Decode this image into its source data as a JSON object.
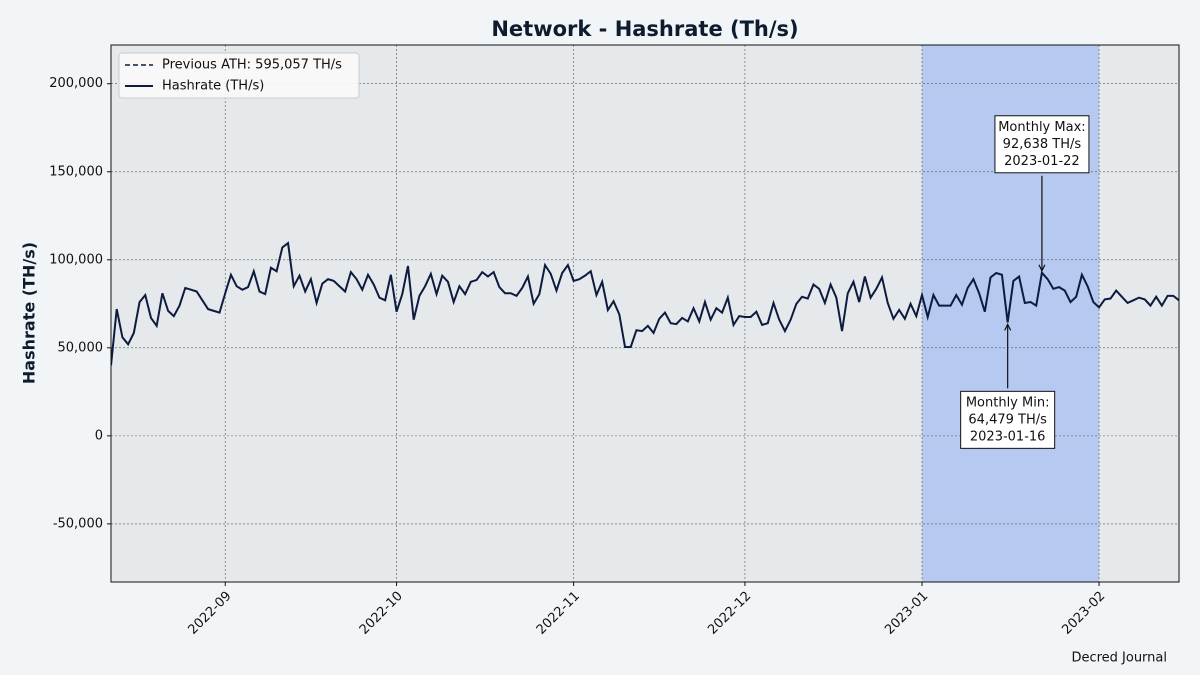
{
  "chart_data": {
    "type": "line",
    "title": "Network - Hashrate (Th/s)",
    "y_label": "Hashrate (TH/s)",
    "footer": "Decred Journal",
    "x": [
      "2022-08-12",
      "2022-08-13",
      "2022-08-14",
      "2022-08-15",
      "2022-08-16",
      "2022-08-17",
      "2022-08-18",
      "2022-08-19",
      "2022-08-20",
      "2022-08-21",
      "2022-08-22",
      "2022-08-23",
      "2022-08-24",
      "2022-08-25",
      "2022-08-26",
      "2022-08-27",
      "2022-08-28",
      "2022-08-29",
      "2022-08-30",
      "2022-08-31",
      "2022-09-01",
      "2022-09-02",
      "2022-09-03",
      "2022-09-04",
      "2022-09-05",
      "2022-09-06",
      "2022-09-07",
      "2022-09-08",
      "2022-09-09",
      "2022-09-10",
      "2022-09-11",
      "2022-09-12",
      "2022-09-13",
      "2022-09-14",
      "2022-09-15",
      "2022-09-16",
      "2022-09-17",
      "2022-09-18",
      "2022-09-19",
      "2022-09-20",
      "2022-09-21",
      "2022-09-22",
      "2022-09-23",
      "2022-09-24",
      "2022-09-25",
      "2022-09-26",
      "2022-09-27",
      "2022-09-28",
      "2022-09-29",
      "2022-09-30",
      "2022-10-01",
      "2022-10-02",
      "2022-10-03",
      "2022-10-04",
      "2022-10-05",
      "2022-10-06",
      "2022-10-07",
      "2022-10-08",
      "2022-10-09",
      "2022-10-10",
      "2022-10-11",
      "2022-10-12",
      "2022-10-13",
      "2022-10-14",
      "2022-10-15",
      "2022-10-16",
      "2022-10-17",
      "2022-10-18",
      "2022-10-19",
      "2022-10-20",
      "2022-10-21",
      "2022-10-22",
      "2022-10-23",
      "2022-10-24",
      "2022-10-25",
      "2022-10-26",
      "2022-10-27",
      "2022-10-28",
      "2022-10-29",
      "2022-10-30",
      "2022-10-31",
      "2022-11-01",
      "2022-11-02",
      "2022-11-03",
      "2022-11-04",
      "2022-11-05",
      "2022-11-06",
      "2022-11-07",
      "2022-11-08",
      "2022-11-09",
      "2022-11-10",
      "2022-11-11",
      "2022-11-12",
      "2022-11-13",
      "2022-11-14",
      "2022-11-15",
      "2022-11-16",
      "2022-11-17",
      "2022-11-18",
      "2022-11-19",
      "2022-11-20",
      "2022-11-21",
      "2022-11-22",
      "2022-11-23",
      "2022-11-24",
      "2022-11-25",
      "2022-11-26",
      "2022-11-27",
      "2022-11-28",
      "2022-11-29",
      "2022-11-30",
      "2022-12-01",
      "2022-12-02",
      "2022-12-03",
      "2022-12-04",
      "2022-12-05",
      "2022-12-06",
      "2022-12-07",
      "2022-12-08",
      "2022-12-09",
      "2022-12-10",
      "2022-12-11",
      "2022-12-12",
      "2022-12-13",
      "2022-12-14",
      "2022-12-15",
      "2022-12-16",
      "2022-12-17",
      "2022-12-18",
      "2022-12-19",
      "2022-12-20",
      "2022-12-21",
      "2022-12-22",
      "2022-12-23",
      "2022-12-24",
      "2022-12-25",
      "2022-12-26",
      "2022-12-27",
      "2022-12-28",
      "2022-12-29",
      "2022-12-30",
      "2022-12-31",
      "2023-01-01",
      "2023-01-02",
      "2023-01-03",
      "2023-01-04",
      "2023-01-05",
      "2023-01-06",
      "2023-01-07",
      "2023-01-08",
      "2023-01-09",
      "2023-01-10",
      "2023-01-11",
      "2023-01-12",
      "2023-01-13",
      "2023-01-14",
      "2023-01-15",
      "2023-01-16",
      "2023-01-17",
      "2023-01-18",
      "2023-01-19",
      "2023-01-20",
      "2023-01-21",
      "2023-01-22",
      "2023-01-23",
      "2023-01-24",
      "2023-01-25",
      "2023-01-26",
      "2023-01-27",
      "2023-01-28",
      "2023-01-29",
      "2023-01-30",
      "2023-01-31",
      "2023-02-01",
      "2023-02-02",
      "2023-02-03",
      "2023-02-04",
      "2023-02-05",
      "2023-02-06",
      "2023-02-07",
      "2023-02-08",
      "2023-02-09",
      "2023-02-10",
      "2023-02-11",
      "2023-02-12",
      "2023-02-13",
      "2023-02-14",
      "2023-02-15"
    ],
    "series": [
      {
        "name": "Hashrate (TH/s)",
        "color": "#0d1b3e",
        "values": [
          40000,
          72000,
          56000,
          52000,
          58500,
          76000,
          80000,
          67000,
          62500,
          81000,
          71000,
          68000,
          74000,
          84000,
          83000,
          82000,
          77000,
          72000,
          71000,
          70000,
          81000,
          91500,
          85000,
          83000,
          84500,
          93500,
          82000,
          80500,
          95500,
          93500,
          107000,
          109500,
          85000,
          91000,
          82000,
          89000,
          75500,
          86500,
          89000,
          88000,
          85000,
          82000,
          93000,
          89000,
          83000,
          91500,
          86000,
          78500,
          77000,
          91500,
          70500,
          80500,
          96500,
          66000,
          79500,
          85000,
          92000,
          80500,
          91000,
          87500,
          76000,
          85000,
          80500,
          87500,
          88500,
          93000,
          90500,
          93000,
          84500,
          81000,
          81000,
          79500,
          84000,
          90500,
          75000,
          80500,
          97000,
          92000,
          82500,
          92500,
          97000,
          88000,
          89000,
          91000,
          93500,
          80000,
          87500,
          71500,
          76500,
          69000,
          50500,
          50500,
          60000,
          59500,
          62500,
          58500,
          66500,
          70000,
          64000,
          63500,
          67000,
          65000,
          72500,
          65000,
          76000,
          66000,
          72500,
          70000,
          78500,
          63000,
          68000,
          67500,
          67500,
          70500,
          63000,
          64000,
          75500,
          66000,
          59500,
          66000,
          75000,
          79000,
          78000,
          86000,
          83500,
          75500,
          86000,
          78500,
          59500,
          81000,
          87500,
          76000,
          90500,
          78500,
          83500,
          90000,
          75500,
          66500,
          71500,
          66500,
          75000,
          68000,
          80000,
          67500,
          80000,
          74000,
          74000,
          74000,
          80000,
          74500,
          84000,
          89000,
          81000,
          70500,
          90000,
          92500,
          91500,
          64479,
          88000,
          90500,
          75500,
          76000,
          74000,
          92638,
          89000,
          83500,
          84500,
          82500,
          76000,
          79000,
          91500,
          85000,
          76000,
          73000,
          77500,
          78000,
          82500,
          79000,
          75500,
          77000,
          78500,
          77500,
          74000,
          79000,
          74000,
          79500,
          79500,
          77000
        ]
      }
    ],
    "reference_line": {
      "name": "Previous ATH: 595,057 TH/s",
      "value": 595057,
      "color": "#0d1b3e",
      "style": "dashed"
    },
    "highlight": {
      "from": "2023-01-01",
      "to": "2023-02-01",
      "color": "#b5c9f1"
    },
    "annotations": [
      {
        "lines": [
          "Monthly Max:",
          "92,638 TH/s",
          "2023-01-22"
        ],
        "x": "2023-01-22",
        "y": 92638
      },
      {
        "lines": [
          "Monthly Min:",
          "64,479 TH/s",
          "2023-01-16"
        ],
        "x": "2023-01-16",
        "y": 64479
      }
    ],
    "xlim": [
      "2022-08-12",
      "2023-02-15"
    ],
    "xticks": [
      "2022-09",
      "2022-10",
      "2022-11",
      "2022-12",
      "2023-01",
      "2023-02"
    ],
    "ylim": [
      -83000,
      222000
    ],
    "yticks": [
      {
        "value": -50000,
        "label": "-50,000"
      },
      0,
      {
        "value": 50000,
        "label": "50,000"
      },
      {
        "value": 100000,
        "label": "100,000"
      },
      {
        "value": 150000,
        "label": "150,000"
      },
      {
        "value": 200000,
        "label": "200,000"
      }
    ],
    "grid": true,
    "legend": "upper left"
  }
}
